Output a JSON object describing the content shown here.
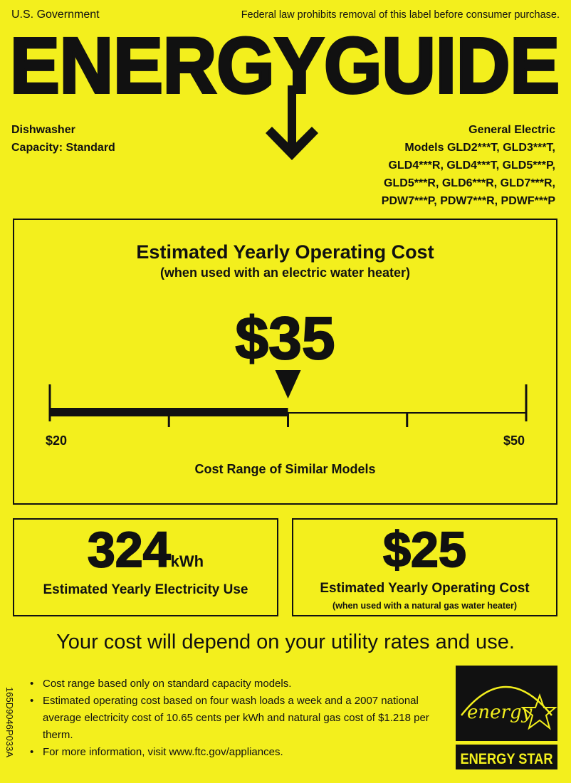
{
  "header": {
    "government": "U.S. Government",
    "law_notice": "Federal law prohibits removal of this label before consumer purchase.",
    "title": "ENERGYGUIDE"
  },
  "appliance": {
    "type": "Dishwasher",
    "capacity": "Capacity: Standard"
  },
  "manufacturer": {
    "name": "General Electric",
    "models": [
      "Models GLD2***T, GLD3***T,",
      "GLD4***R, GLD4***T, GLD5***P,",
      "GLD5***R, GLD6***R, GLD7***R,",
      "PDW7***P, PDW7***R, PDWF***P"
    ]
  },
  "main": {
    "title": "Estimated Yearly Operating Cost",
    "subtitle": "(when used with an electric water heater)",
    "cost": "$35",
    "cost_value": 35,
    "range_min": 20,
    "range_max": 50,
    "range_low_label": "$20",
    "range_high_label": "$50",
    "range_label": "Cost Range of Similar Models"
  },
  "electricity": {
    "value": "324",
    "unit": "kWh",
    "label": "Estimated Yearly Electricity Use"
  },
  "gas": {
    "cost": "$25",
    "label": "Estimated Yearly Operating Cost",
    "sublabel": "(when used with a natural gas water heater)"
  },
  "footer": {
    "depend": "Your cost will depend on your utility rates and use.",
    "notes": [
      "Cost range based only on standard capacity models.",
      "Estimated operating cost based on four wash loads a week and a 2007 national average electricity cost of 10.65 cents per kWh and natural gas cost of $1.218 per therm.",
      "For more information, visit www.ftc.gov/appliances."
    ],
    "code": "165D9046P033A"
  },
  "energy_star": {
    "script": "energy",
    "label": "ENERGY STAR"
  },
  "colors": {
    "background": "#f3ef1d",
    "ink": "#111111"
  }
}
